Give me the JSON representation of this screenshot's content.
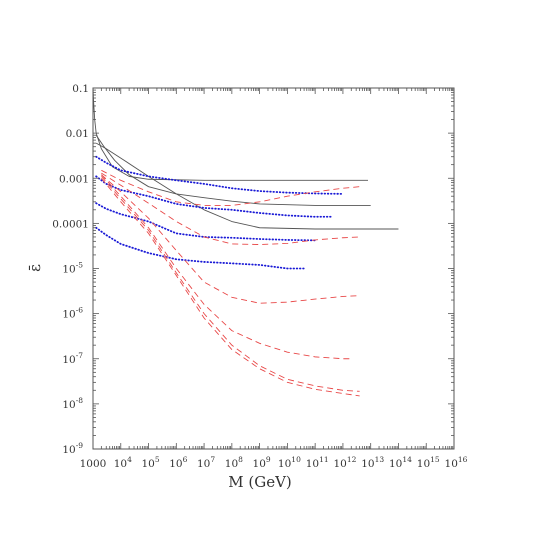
{
  "chart_data": {
    "type": "line",
    "title": "",
    "xlabel": "M (GeV)",
    "ylabel": "ε̄",
    "x_scale": "log",
    "y_scale": "log",
    "xlim": [
      1000,
      1e+16
    ],
    "ylim": [
      1e-09,
      0.1
    ],
    "grid": false,
    "legend": "none",
    "x_tick_labels": [
      {
        "value": 1000.0,
        "base": "1000",
        "exp": ""
      },
      {
        "value": 10000.0,
        "base": "10",
        "exp": "4"
      },
      {
        "value": 100000.0,
        "base": "10",
        "exp": "5"
      },
      {
        "value": 1000000.0,
        "base": "10",
        "exp": "6"
      },
      {
        "value": 10000000.0,
        "base": "10",
        "exp": "7"
      },
      {
        "value": 100000000.0,
        "base": "10",
        "exp": "8"
      },
      {
        "value": 1000000000.0,
        "base": "10",
        "exp": "9"
      },
      {
        "value": 10000000000.0,
        "base": "10",
        "exp": "10"
      },
      {
        "value": 100000000000.0,
        "base": "10",
        "exp": "11"
      },
      {
        "value": 1000000000000.0,
        "base": "10",
        "exp": "12"
      },
      {
        "value": 10000000000000.0,
        "base": "10",
        "exp": "13"
      },
      {
        "value": 100000000000000.0,
        "base": "10",
        "exp": "14"
      },
      {
        "value": 1000000000000000.0,
        "base": "10",
        "exp": "15"
      },
      {
        "value": 1e+16,
        "base": "10",
        "exp": "16"
      }
    ],
    "y_tick_labels": [
      {
        "value": 0.1,
        "base": "0.1",
        "exp": ""
      },
      {
        "value": 0.01,
        "base": "0.01",
        "exp": ""
      },
      {
        "value": 0.001,
        "base": "0.001",
        "exp": ""
      },
      {
        "value": 0.0001,
        "base": "0.0001",
        "exp": ""
      },
      {
        "value": 1e-05,
        "base": "10",
        "exp": "-5"
      },
      {
        "value": 1e-06,
        "base": "10",
        "exp": "-6"
      },
      {
        "value": 1e-07,
        "base": "10",
        "exp": "-7"
      },
      {
        "value": 1e-08,
        "base": "10",
        "exp": "-8"
      },
      {
        "value": 1e-09,
        "base": "10",
        "exp": "-9"
      }
    ],
    "colors": {
      "solid": "#555555",
      "dotted": "#1a1ad6",
      "dashed": "#e84848",
      "frame": "#555555"
    },
    "series": [
      {
        "style": "solid",
        "points": [
          [
            1000,
            0.1
          ],
          [
            1050,
            0.05
          ],
          [
            1150,
            0.02
          ],
          [
            1300,
            0.01
          ],
          [
            2000,
            0.0045
          ],
          [
            5000,
            0.0018
          ],
          [
            20000,
            0.0011
          ],
          [
            100000,
            0.00095
          ],
          [
            10000000.0,
            0.0009
          ],
          [
            10000000000.0,
            0.0009
          ],
          [
            8000000000000.0,
            0.0009
          ]
        ]
      },
      {
        "style": "solid",
        "points": [
          [
            1300,
            0.009
          ],
          [
            2500,
            0.005
          ],
          [
            6000,
            0.0025
          ],
          [
            20000,
            0.0012
          ],
          [
            100000,
            0.00065
          ],
          [
            1000000.0,
            0.00045
          ],
          [
            10000000.0,
            0.00037
          ],
          [
            100000000.0,
            0.00031
          ],
          [
            1000000000.0,
            0.00027
          ],
          [
            100000000000.0,
            0.00025
          ],
          [
            10000000000000.0,
            0.00025
          ]
        ]
      },
      {
        "style": "solid",
        "points": [
          [
            1300,
            0.006
          ],
          [
            3000,
            0.0045
          ],
          [
            10000,
            0.0028
          ],
          [
            100000,
            0.0011
          ],
          [
            1000000.0,
            0.00045
          ],
          [
            10000000.0,
            0.0002
          ],
          [
            100000000.0,
            0.00011
          ],
          [
            1000000000.0,
            8e-05
          ],
          [
            100000000000.0,
            7.5e-05
          ],
          [
            100000000000000.0,
            7.5e-05
          ]
        ]
      },
      {
        "style": "dotted",
        "points": [
          [
            1300,
            0.003
          ],
          [
            3000,
            0.0022
          ],
          [
            10000,
            0.0015
          ],
          [
            100000,
            0.0011
          ],
          [
            1000000.0,
            0.0009
          ],
          [
            10000000.0,
            0.00075
          ],
          [
            100000000.0,
            0.0006
          ],
          [
            1000000000.0,
            0.00052
          ],
          [
            10000000000.0,
            0.00048
          ],
          [
            100000000000.0,
            0.00046
          ],
          [
            1000000000000.0,
            0.00045
          ]
        ]
      },
      {
        "style": "dotted",
        "points": [
          [
            1300,
            0.0011
          ],
          [
            3000,
            0.00075
          ],
          [
            10000,
            0.00055
          ],
          [
            100000,
            0.0004
          ],
          [
            1000000.0,
            0.00027
          ],
          [
            10000000.0,
            0.00022
          ],
          [
            100000000.0,
            0.0002
          ],
          [
            1000000000.0,
            0.00017
          ],
          [
            10000000000.0,
            0.00015
          ],
          [
            100000000000.0,
            0.00014
          ],
          [
            400000000000.0,
            0.00014
          ]
        ]
      },
      {
        "style": "dotted",
        "points": [
          [
            1300,
            0.00028
          ],
          [
            3000,
            0.00021
          ],
          [
            10000,
            0.00016
          ],
          [
            100000,
            0.00011
          ],
          [
            1000000.0,
            6e-05
          ],
          [
            10000000.0,
            5e-05
          ],
          [
            100000000.0,
            4.8e-05
          ],
          [
            1000000000.0,
            4.5e-05
          ],
          [
            10000000000.0,
            4.3e-05
          ],
          [
            100000000000.0,
            4.2e-05
          ]
        ]
      },
      {
        "style": "dotted",
        "points": [
          [
            1300,
            8e-05
          ],
          [
            3000,
            5.5e-05
          ],
          [
            10000,
            3.5e-05
          ],
          [
            100000,
            2.2e-05
          ],
          [
            1000000.0,
            1.6e-05
          ],
          [
            10000000.0,
            1.4e-05
          ],
          [
            100000000.0,
            1.3e-05
          ],
          [
            1000000000.0,
            1.2e-05
          ],
          [
            10000000000.0,
            1e-05
          ],
          [
            40000000000.0,
            1e-05
          ]
        ]
      },
      {
        "style": "dashed",
        "points": [
          [
            2000,
            0.0015
          ],
          [
            10000,
            0.0009
          ],
          [
            100000,
            0.0005
          ],
          [
            1000000.0,
            0.0003
          ],
          [
            10000000.0,
            0.00025
          ],
          [
            100000000.0,
            0.00025
          ],
          [
            1000000000.0,
            0.0003
          ],
          [
            10000000000.0,
            0.0004
          ],
          [
            100000000000.0,
            0.0005
          ],
          [
            1000000000000.0,
            0.0006
          ],
          [
            4000000000000.0,
            0.00065
          ]
        ]
      },
      {
        "style": "dashed",
        "points": [
          [
            2000,
            0.0013
          ],
          [
            10000,
            0.0007
          ],
          [
            100000,
            0.00028
          ],
          [
            1000000.0,
            0.00011
          ],
          [
            10000000.0,
            5e-05
          ],
          [
            100000000.0,
            3.5e-05
          ],
          [
            1000000000.0,
            3.4e-05
          ],
          [
            10000000000.0,
            3.6e-05
          ],
          [
            100000000000.0,
            4.3e-05
          ],
          [
            1000000000000.0,
            4.8e-05
          ],
          [
            4000000000000.0,
            5e-05
          ]
        ]
      },
      {
        "style": "dashed",
        "points": [
          [
            2000,
            0.0012
          ],
          [
            10000,
            0.0005
          ],
          [
            100000,
            0.00013
          ],
          [
            1000000.0,
            2.5e-05
          ],
          [
            10000000.0,
            5e-06
          ],
          [
            100000000.0,
            2.3e-06
          ],
          [
            1000000000.0,
            1.7e-06
          ],
          [
            10000000000.0,
            1.8e-06
          ],
          [
            100000000000.0,
            2.1e-06
          ],
          [
            1000000000000.0,
            2.4e-06
          ],
          [
            4000000000000.0,
            2.5e-06
          ]
        ]
      },
      {
        "style": "dashed",
        "points": [
          [
            2000,
            0.0012
          ],
          [
            10000,
            0.0004
          ],
          [
            100000,
            8e-05
          ],
          [
            1000000.0,
            1e-05
          ],
          [
            10000000.0,
            1.6e-06
          ],
          [
            100000000.0,
            4.2e-07
          ],
          [
            1000000000.0,
            2.2e-07
          ],
          [
            10000000000.0,
            1.4e-07
          ],
          [
            100000000000.0,
            1.1e-07
          ],
          [
            1000000000000.0,
            1e-07
          ],
          [
            2000000000000.0,
            1e-07
          ]
        ]
      },
      {
        "style": "dashed",
        "points": [
          [
            2000,
            0.0011
          ],
          [
            10000,
            0.00035
          ],
          [
            100000,
            7e-05
          ],
          [
            1000000.0,
            8e-06
          ],
          [
            10000000.0,
            1e-06
          ],
          [
            100000000.0,
            2e-07
          ],
          [
            1000000000.0,
            7e-08
          ],
          [
            10000000000.0,
            3.5e-08
          ],
          [
            100000000000.0,
            2.5e-08
          ],
          [
            1000000000000.0,
            2e-08
          ],
          [
            4000000000000.0,
            1.9e-08
          ]
        ]
      },
      {
        "style": "dashed",
        "points": [
          [
            2000,
            0.001
          ],
          [
            10000,
            0.0003
          ],
          [
            100000,
            6e-05
          ],
          [
            1000000.0,
            7e-06
          ],
          [
            10000000.0,
            8e-07
          ],
          [
            100000000.0,
            1.6e-07
          ],
          [
            1000000000.0,
            6e-08
          ],
          [
            10000000000.0,
            3e-08
          ],
          [
            100000000000.0,
            2.1e-08
          ],
          [
            1000000000000.0,
            1.7e-08
          ],
          [
            4000000000000.0,
            1.5e-08
          ]
        ]
      }
    ]
  }
}
